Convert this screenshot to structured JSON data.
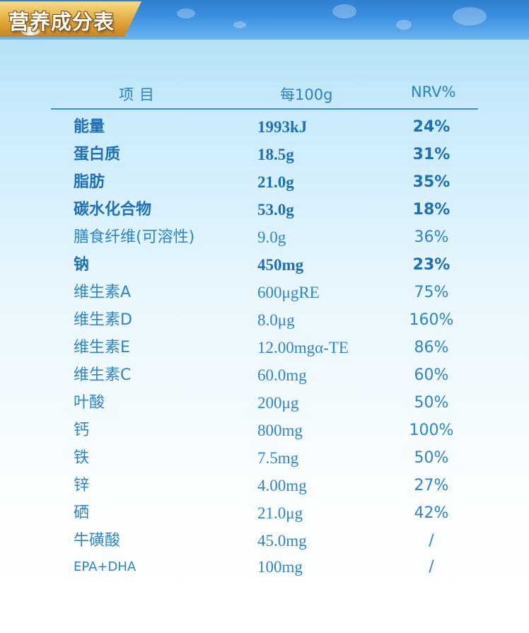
{
  "banner": {
    "title": "营养成分表"
  },
  "colors": {
    "accent": "#2d85c8",
    "bold_text": "#1f6fb7",
    "rule": "#3a90d0",
    "banner_blue": "#3b8ee0",
    "tag_gold": "#e2a83c"
  },
  "table": {
    "headers": {
      "item": "项目",
      "per": "每100g",
      "nrv": "NRV%"
    },
    "rows": [
      {
        "name": "能量",
        "amount": "1993kJ",
        "nrv": "24%"
      },
      {
        "name": "蛋白质",
        "amount": "18.5g",
        "nrv": "31%"
      },
      {
        "name": "脂肪",
        "amount": "21.0g",
        "nrv": "35%"
      },
      {
        "name": "碳水化合物",
        "amount": "53.0g",
        "nrv": "18%"
      },
      {
        "name": "膳食纤维(可溶性)",
        "amount": "9.0g",
        "nrv": "36%"
      },
      {
        "name": "钠",
        "amount": "450mg",
        "nrv": "23%"
      },
      {
        "name": "维生素A",
        "amount": "600μgRE",
        "nrv": "75%"
      },
      {
        "name": "维生素D",
        "amount": "8.0μg",
        "nrv": "160%"
      },
      {
        "name": "维生素E",
        "amount": "12.00mgα-TE",
        "nrv": "86%"
      },
      {
        "name": "维生素C",
        "amount": "60.0mg",
        "nrv": "60%"
      },
      {
        "name": "叶酸",
        "amount": "200μg",
        "nrv": "50%"
      },
      {
        "name": "钙",
        "amount": "800mg",
        "nrv": "100%"
      },
      {
        "name": "铁",
        "amount": "7.5mg",
        "nrv": "50%"
      },
      {
        "name": "锌",
        "amount": "4.00mg",
        "nrv": "27%"
      },
      {
        "name": "硒",
        "amount": "21.0μg",
        "nrv": "42%"
      },
      {
        "name": "牛磺酸",
        "amount": "45.0mg",
        "nrv": "/"
      },
      {
        "name": "EPA+DHA",
        "amount": "100mg",
        "nrv": "/"
      }
    ]
  }
}
